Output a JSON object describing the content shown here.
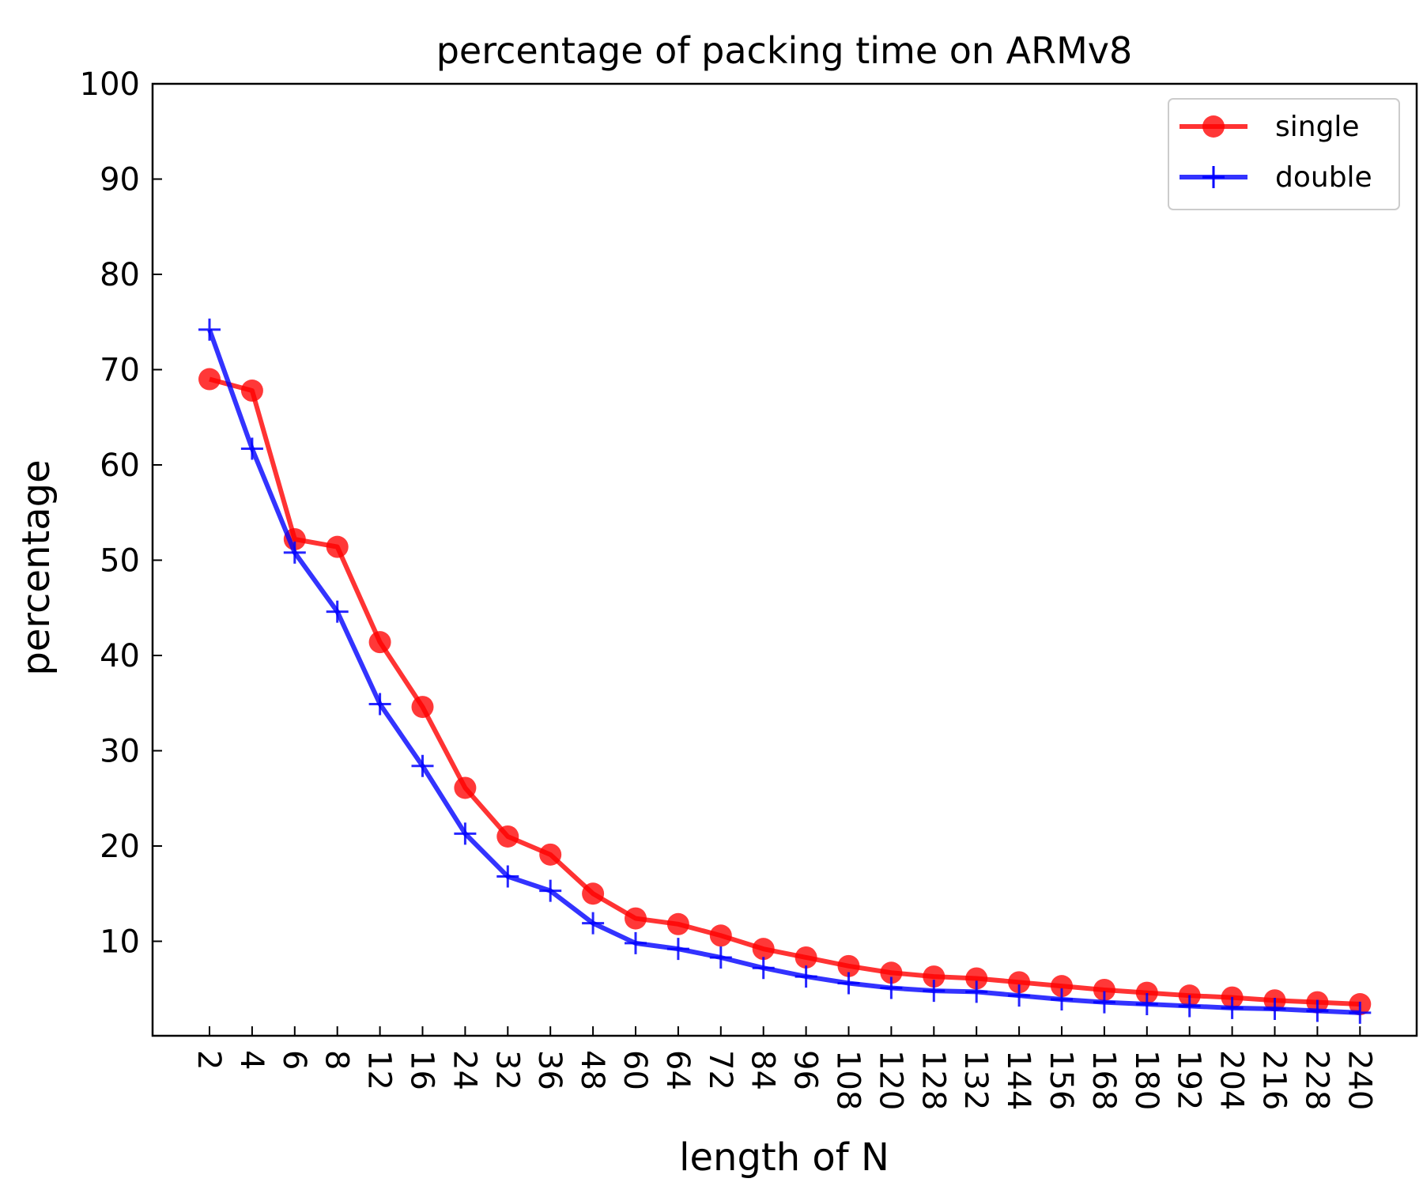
{
  "chart_data": {
    "type": "line",
    "title": "percentage of packing time on ARMv8",
    "xlabel": "length of N",
    "ylabel": "percentage",
    "ylim": [
      0,
      100
    ],
    "yticks": [
      "10",
      "20",
      "30",
      "40",
      "50",
      "60",
      "70",
      "80",
      "90",
      "100"
    ],
    "categories": [
      "2",
      "4",
      "6",
      "8",
      "12",
      "16",
      "24",
      "32",
      "36",
      "48",
      "60",
      "64",
      "72",
      "84",
      "96",
      "108",
      "120",
      "128",
      "132",
      "144",
      "156",
      "168",
      "180",
      "192",
      "204",
      "216",
      "228",
      "240"
    ],
    "legend_position": "top-right",
    "series": [
      {
        "name": "single",
        "color": "#ff0000",
        "marker": "circle",
        "values": [
          69.0,
          67.8,
          52.2,
          51.4,
          41.4,
          34.6,
          26.1,
          21.0,
          19.1,
          15.0,
          12.4,
          11.8,
          10.6,
          9.2,
          8.3,
          7.4,
          6.7,
          6.3,
          6.1,
          5.7,
          5.3,
          4.9,
          4.6,
          4.3,
          4.1,
          3.8,
          3.6,
          3.4
        ]
      },
      {
        "name": "double",
        "color": "#0000ff",
        "marker": "plus",
        "values": [
          74.2,
          61.7,
          50.8,
          44.6,
          34.9,
          28.4,
          21.3,
          16.8,
          15.3,
          11.9,
          9.8,
          9.2,
          8.3,
          7.2,
          6.3,
          5.6,
          5.1,
          4.8,
          4.7,
          4.3,
          3.9,
          3.6,
          3.4,
          3.2,
          3.0,
          2.9,
          2.7,
          2.5
        ]
      }
    ]
  }
}
